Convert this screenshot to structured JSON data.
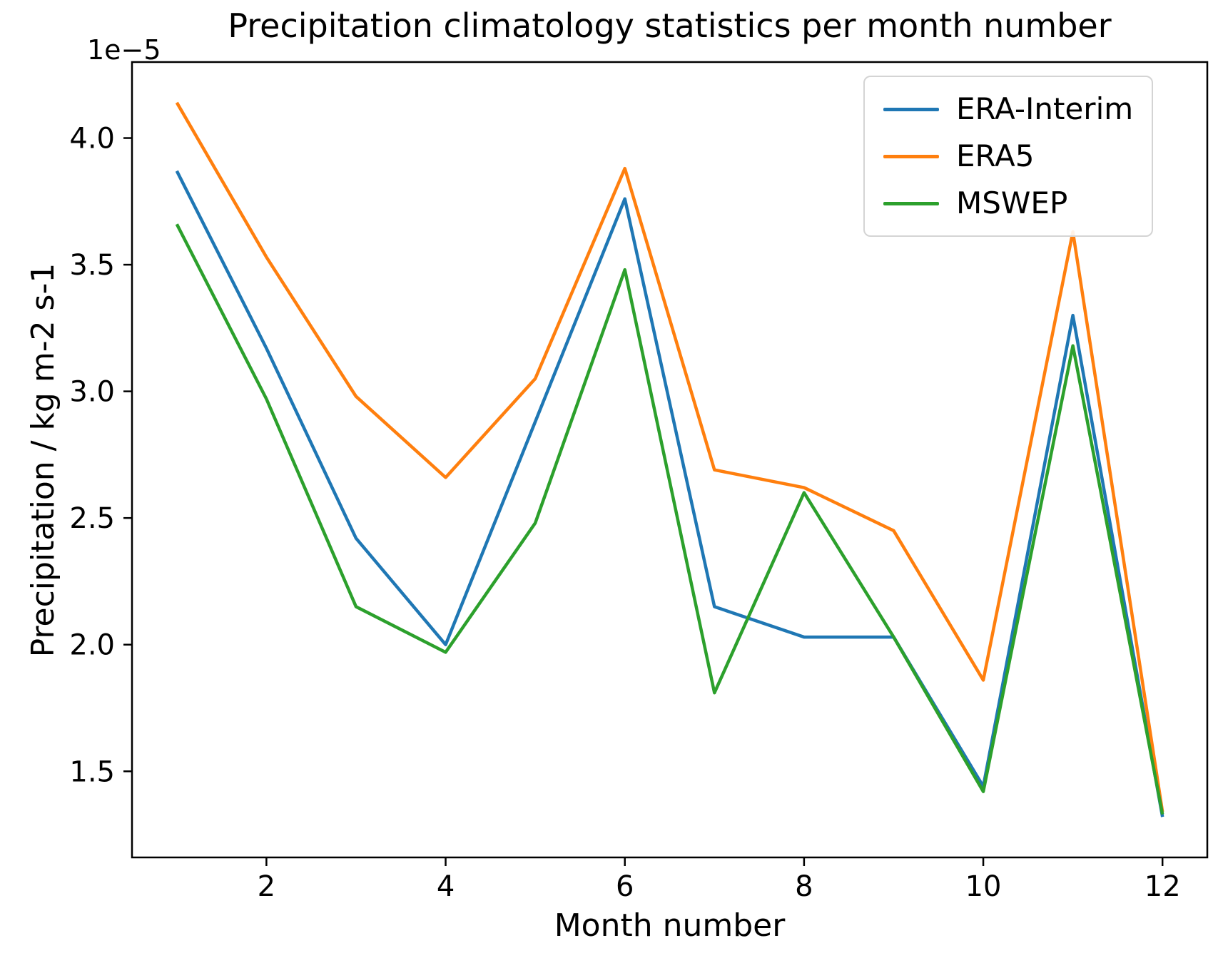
{
  "chart_data": {
    "type": "line",
    "title": "Precipitation climatology statistics per month number",
    "xlabel": "Month number",
    "ylabel": "Precipitation / kg m-2 s-1",
    "y_offset_label": "1e−5",
    "units": "1e-5 kg m-2 s-1",
    "grid": false,
    "legend_position": "upper right",
    "x": [
      1,
      2,
      3,
      4,
      5,
      6,
      7,
      8,
      9,
      10,
      11,
      12
    ],
    "x_ticks": [
      "2",
      "4",
      "6",
      "8",
      "10",
      "12"
    ],
    "y_ticks": [
      "1.5",
      "2.0",
      "2.5",
      "3.0",
      "3.5",
      "4.0"
    ],
    "xlim": [
      0.5,
      12.5
    ],
    "ylim": [
      1.16,
      4.3
    ],
    "series": [
      {
        "name": "ERA-Interim",
        "color": "#1f77b4",
        "values": [
          3.87,
          3.17,
          2.42,
          2.0,
          2.88,
          3.76,
          2.15,
          2.03,
          2.03,
          1.44,
          3.3,
          1.32
        ]
      },
      {
        "name": "ERA5",
        "color": "#ff7f0e",
        "values": [
          4.14,
          3.53,
          2.98,
          2.66,
          3.05,
          3.88,
          2.69,
          2.62,
          2.45,
          1.86,
          3.63,
          1.34
        ]
      },
      {
        "name": "MSWEP",
        "color": "#2ca02c",
        "values": [
          3.66,
          2.97,
          2.15,
          1.97,
          2.48,
          3.48,
          1.81,
          2.6,
          2.03,
          1.42,
          3.18,
          1.33
        ]
      }
    ]
  }
}
